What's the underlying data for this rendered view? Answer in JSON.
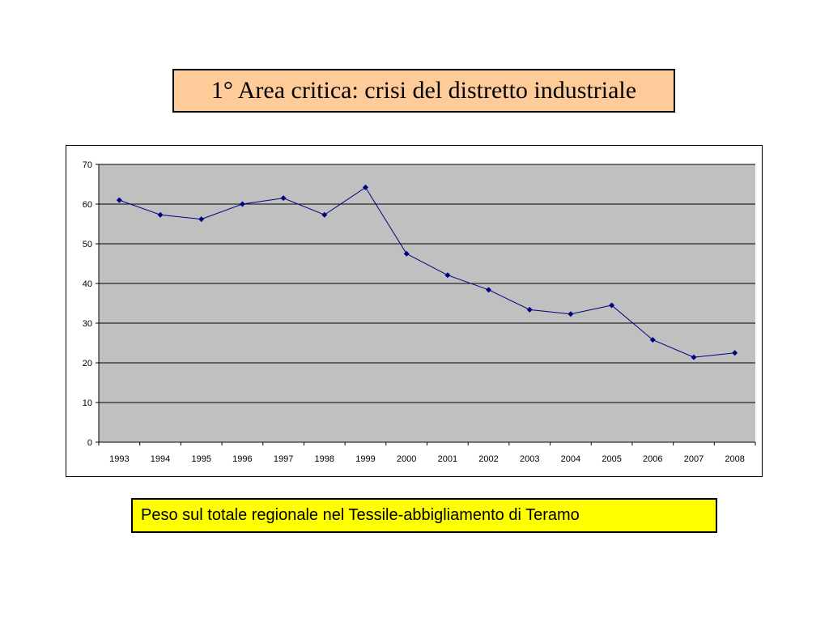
{
  "slide": {
    "title": "1° Area critica: crisi del distretto industriale",
    "caption": "Peso sul totale regionale nel Tessile-abbigliamento di Teramo"
  },
  "colors": {
    "title_bg": "#ffcc99",
    "caption_bg": "#ffff00",
    "plot_bg": "#c0c0c0",
    "series": "#000080"
  },
  "chart_data": {
    "type": "line",
    "title": "",
    "xlabel": "",
    "ylabel": "",
    "grid": true,
    "legend": "none",
    "ylim": [
      0,
      70
    ],
    "yticks": [
      0,
      10,
      20,
      30,
      40,
      50,
      60,
      70
    ],
    "categories": [
      "1993",
      "1994",
      "1995",
      "1996",
      "1997",
      "1998",
      "1999",
      "2000",
      "2001",
      "2002",
      "2003",
      "2004",
      "2005",
      "2006",
      "2007",
      "2008"
    ],
    "series": [
      {
        "values": [
          61.0,
          57.3,
          56.2,
          60.0,
          61.5,
          57.3,
          64.2,
          47.5,
          42.1,
          38.4,
          33.4,
          32.3,
          34.5,
          25.8,
          21.4,
          22.5
        ],
        "marker": "diamond"
      }
    ]
  }
}
